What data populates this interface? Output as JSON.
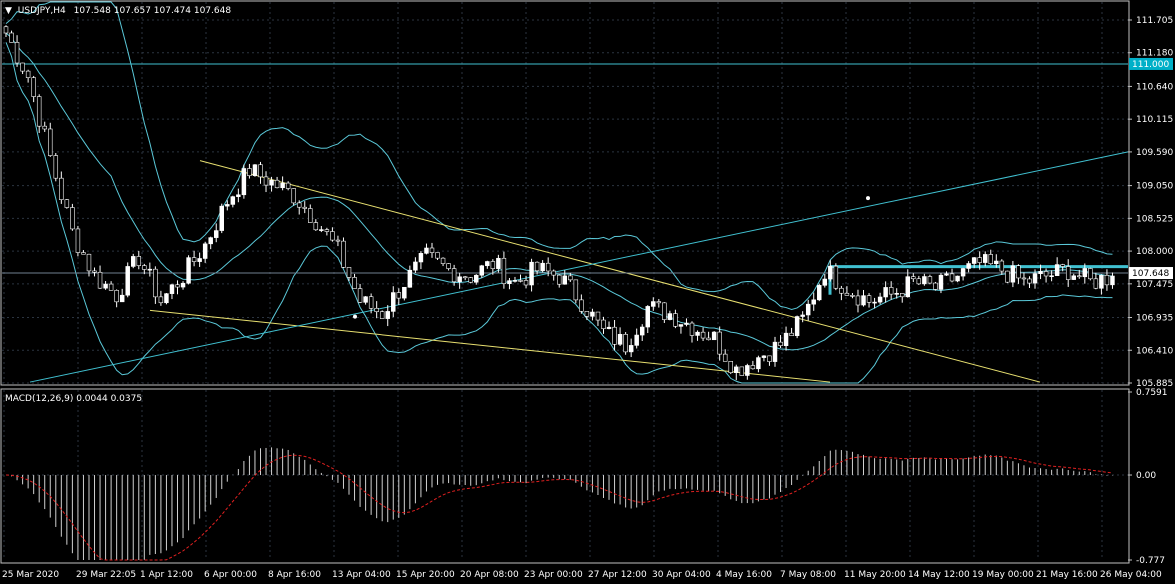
{
  "header": {
    "arrow": "▼",
    "symbol": "USDJPY,H4",
    "ohlc": "107.548 107.657 107.474 107.648"
  },
  "macd_header": "MACD(12,26,9) 0.0044 0.0375",
  "colors": {
    "background": "#000000",
    "grid": "#2b3440",
    "frame": "#c0c0c0",
    "bull_candle": "#ffffff",
    "bear_candle": "#000000",
    "wick": "#ffffff",
    "bollinger": "#5ac8d8",
    "trendline": "#e8e070",
    "channel": "#40c0d0",
    "level_badge": "#00b0c8",
    "macd_hist": "#d0d0d0",
    "macd_signal": "#e02020"
  },
  "chart_data": [
    {
      "type": "candlestick",
      "title": "USDJPY,H4",
      "ylim": [
        105.885,
        111.705
      ],
      "y_ticks": [
        "111.705",
        "111.180",
        "110.640",
        "110.115",
        "109.590",
        "109.050",
        "108.525",
        "108.000",
        "107.475",
        "106.935",
        "106.410",
        "105.885"
      ],
      "x_ticks": [
        "25 Mar 2020",
        "29 Mar 22:05",
        "1 Apr 12:00",
        "6 Apr 00:00",
        "8 Apr 16:00",
        "13 Apr 04:00",
        "15 Apr 20:00",
        "20 Apr 08:00",
        "23 Apr 00:00",
        "27 Apr 12:00",
        "30 Apr 04:00",
        "4 May 16:00",
        "7 May 08:00",
        "11 May 20:00",
        "14 May 12:00",
        "19 May 00:00",
        "21 May 16:00",
        "26 May 04:00"
      ],
      "last_price": "107.648",
      "horizontal_level": "111.000",
      "close_path": [
        111.5,
        110.8,
        109.5,
        108.3,
        107.6,
        107.3,
        107.9,
        107.2,
        107.6,
        108.1,
        108.8,
        109.3,
        109.1,
        108.9,
        108.5,
        108.0,
        107.2,
        107.0,
        107.5,
        107.9,
        107.7,
        107.6,
        107.8,
        107.5,
        107.7,
        107.6,
        107.2,
        106.7,
        106.5,
        107.1,
        107.0,
        106.8,
        106.6,
        106.1,
        106.3,
        106.5,
        106.9,
        107.7,
        107.4,
        107.2,
        107.3,
        107.5,
        107.4,
        107.6,
        107.8,
        107.7,
        107.5,
        107.6,
        107.7,
        107.5,
        107.6
      ],
      "candles_per_segment": 4
    },
    {
      "type": "bar",
      "title": "MACD(12,26,9)",
      "ylim": [
        -0.777,
        0.7591
      ],
      "y_ticks": [
        "0.7591",
        "0.00",
        "-0.777"
      ],
      "values": {
        "macd": 0.0044,
        "signal": 0.0375
      }
    }
  ]
}
